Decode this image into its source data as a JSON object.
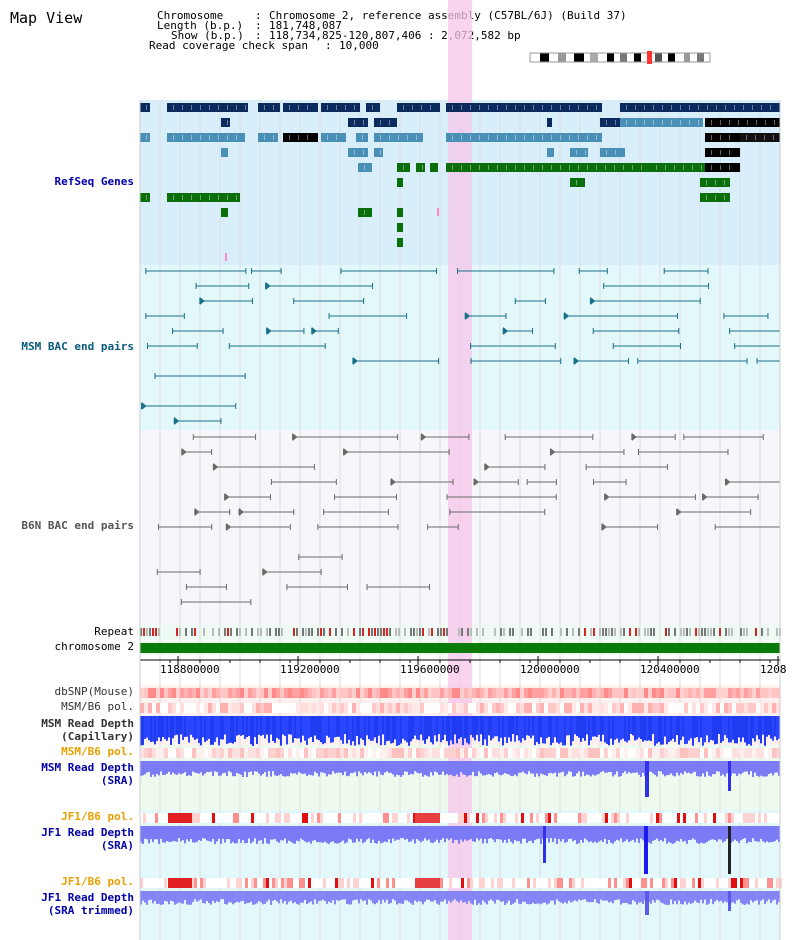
{
  "page_title": "Map View",
  "info": {
    "chromosome_label": "Chromosome",
    "chromosome_value": "Chromosome 2, reference assembly (C57BL/6J) (Build 37)",
    "length_label": "Length (b.p.)",
    "length_value": "181,748,087",
    "show_label": "Show (b.p.)",
    "show_value": "118,734,825-120,807,406 : 2,072,582 bp",
    "coverage_label": "Read coverage check span",
    "coverage_value": "10,000"
  },
  "tracks": {
    "refseq": "RefSeq Genes",
    "msm_bac": "MSM BAC end pairs",
    "b6n_bac": "B6N BAC end pairs",
    "repeat": "Repeat",
    "chromosome": "chromosome 2",
    "dbsnp": "dbSNP(Mouse)",
    "msm_b6_pol": "MSM/B6 pol.",
    "msm_read_depth_cap_1": "MSM Read Depth",
    "msm_read_depth_cap_2": "(Capillary)",
    "msm_b6_pol_2": "MSM/B6 pol.",
    "msm_read_depth_sra_1": "MSM Read Depth",
    "msm_read_depth_sra_2": "(SRA)",
    "jf1_b6_pol": "JF1/B6 pol.",
    "jf1_read_depth_1": "JF1 Read Depth",
    "jf1_read_depth_2": "(SRA)",
    "jf1_b6_pol_2": "JF1/B6 pol.",
    "jf1_trimmed_1": "JF1 Read Depth",
    "jf1_trimmed_2": "(SRA trimmed)"
  },
  "axis": {
    "ticks": [
      "118800000",
      "119200000",
      "119600000",
      "120000000",
      "120400000",
      "1208"
    ]
  },
  "colors": {
    "refseq_label": "#0000aa",
    "msm_label": "#0a5a7a",
    "b6n_label": "#555555",
    "pol_label": "#e8a000",
    "depth_label": "#0000aa",
    "highlight": "#f7c6ea"
  }
}
